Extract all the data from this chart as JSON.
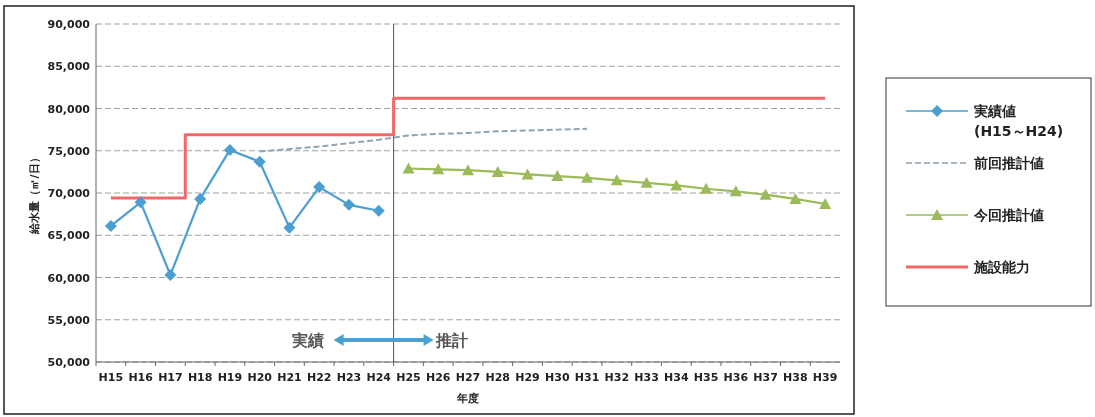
{
  "chart_data": {
    "type": "line",
    "xlabel": "年度",
    "ylabel": "給水量（㎥/日）",
    "categories": [
      "H15",
      "H16",
      "H17",
      "H18",
      "H19",
      "H20",
      "H21",
      "H22",
      "H23",
      "H24",
      "H25",
      "H26",
      "H27",
      "H28",
      "H29",
      "H30",
      "H31",
      "H32",
      "H33",
      "H34",
      "H35",
      "H36",
      "H37",
      "H38",
      "H39"
    ],
    "ylim": [
      50000,
      90000
    ],
    "yticks": [
      {
        "value": 50000,
        "label": "50,000"
      },
      {
        "value": 55000,
        "label": "55,000"
      },
      {
        "value": 60000,
        "label": "60,000"
      },
      {
        "value": 65000,
        "label": "65,000"
      },
      {
        "value": 70000,
        "label": "70,000"
      },
      {
        "value": 75000,
        "label": "75,000"
      },
      {
        "value": 80000,
        "label": "80,000"
      },
      {
        "value": 85000,
        "label": "85,000"
      },
      {
        "value": 90000,
        "label": "90,000"
      }
    ],
    "grid": "y",
    "legend": "right",
    "series": [
      {
        "name": "実績値\n(H15～H24)",
        "color": "#4a9fd0",
        "marker": "diamond",
        "line_style": "solid",
        "values": [
          66100,
          68900,
          60300,
          69300,
          75100,
          73700,
          65900,
          70700,
          68600,
          67900,
          null,
          null,
          null,
          null,
          null,
          null,
          null,
          null,
          null,
          null,
          null,
          null,
          null,
          null,
          null
        ]
      },
      {
        "name": "前回推計値",
        "color": "#8fa4b4",
        "marker": "none",
        "line_style": "dashed",
        "values": [
          null,
          null,
          null,
          null,
          null,
          74900,
          75200,
          75500,
          75900,
          76300,
          76800,
          77000,
          77100,
          77300,
          77400,
          77500,
          77600,
          null,
          null,
          null,
          null,
          null,
          null,
          null,
          null
        ]
      },
      {
        "name": "今回推計値",
        "color": "#9bbb59",
        "marker": "triangle",
        "line_style": "solid",
        "values": [
          null,
          null,
          null,
          null,
          null,
          null,
          null,
          null,
          null,
          null,
          72900,
          72800,
          72700,
          72500,
          72200,
          72000,
          71800,
          71500,
          71200,
          70900,
          70500,
          70200,
          69800,
          69300,
          68700
        ]
      },
      {
        "name": "施設能力",
        "color": "#f06868",
        "type": "step",
        "marker": "none",
        "line_style": "solid",
        "values": [
          69400,
          69400,
          69400,
          76900,
          76900,
          76900,
          76900,
          76900,
          76900,
          76900,
          81200,
          81200,
          81200,
          81200,
          81200,
          81200,
          81200,
          81200,
          81200,
          81200,
          81200,
          81200,
          81200,
          81200,
          81200
        ]
      }
    ],
    "ref_lines": [
      {
        "axis": "x",
        "value": "H24",
        "color": "#555555",
        "line_style": "solid"
      }
    ],
    "annotations": [
      "実績",
      "推計"
    ]
  }
}
